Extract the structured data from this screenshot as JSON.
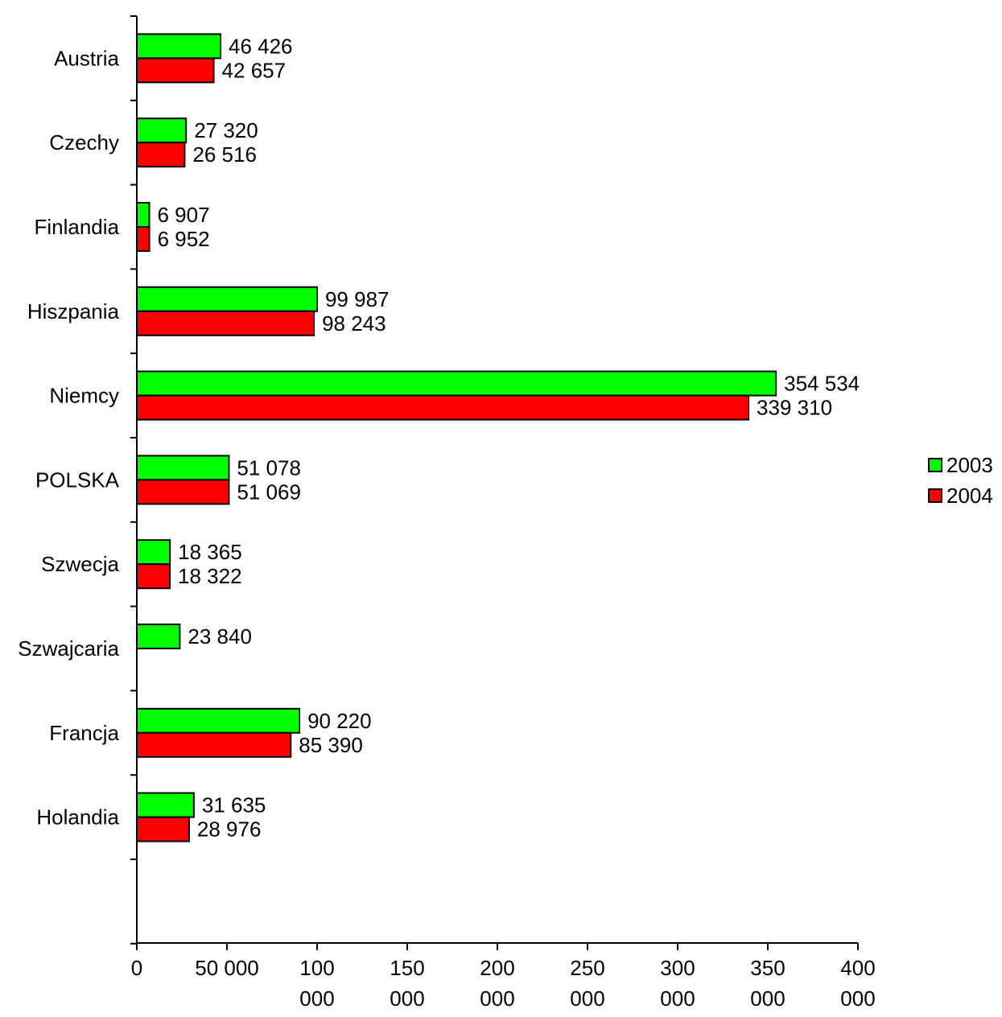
{
  "chart_data": {
    "type": "bar",
    "orientation": "horizontal",
    "categories": [
      "Austria",
      "Czechy",
      "Finlandia",
      "Hiszpania",
      "Niemcy",
      "POLSKA",
      "Szwecja",
      "Szwajcaria",
      "Francja",
      "Holandia"
    ],
    "series": [
      {
        "name": "2003",
        "color": "#00ff00",
        "values": [
          46426,
          27320,
          6907,
          99987,
          354534,
          51078,
          18365,
          23840,
          90220,
          31635
        ],
        "labels": [
          "46 426",
          "27 320",
          "6 907",
          "99 987",
          "354 534",
          "51 078",
          "18 365",
          "23 840",
          "90 220",
          "31 635"
        ]
      },
      {
        "name": "2004",
        "color": "#ff0000",
        "values": [
          42657,
          26516,
          6952,
          98243,
          339310,
          51069,
          18322,
          null,
          85390,
          28976
        ],
        "labels": [
          "42 657",
          "26 516",
          "6 952",
          "98 243",
          "339 310",
          "51 069",
          "18 322",
          null,
          "85 390",
          "28 976"
        ]
      }
    ],
    "xlim": [
      0,
      400000
    ],
    "xticks": [
      0,
      50000,
      100000,
      150000,
      200000,
      250000,
      300000,
      350000,
      400000
    ],
    "xtick_labels": [
      [
        "0"
      ],
      [
        "50 000"
      ],
      [
        "100",
        "000"
      ],
      [
        "150",
        "000"
      ],
      [
        "200",
        "000"
      ],
      [
        "250",
        "000"
      ],
      [
        "300",
        "000"
      ],
      [
        "350",
        "000"
      ],
      [
        "400",
        "000"
      ]
    ],
    "title": "",
    "xlabel": "",
    "ylabel": "",
    "grid": false,
    "legend_position": "right"
  }
}
